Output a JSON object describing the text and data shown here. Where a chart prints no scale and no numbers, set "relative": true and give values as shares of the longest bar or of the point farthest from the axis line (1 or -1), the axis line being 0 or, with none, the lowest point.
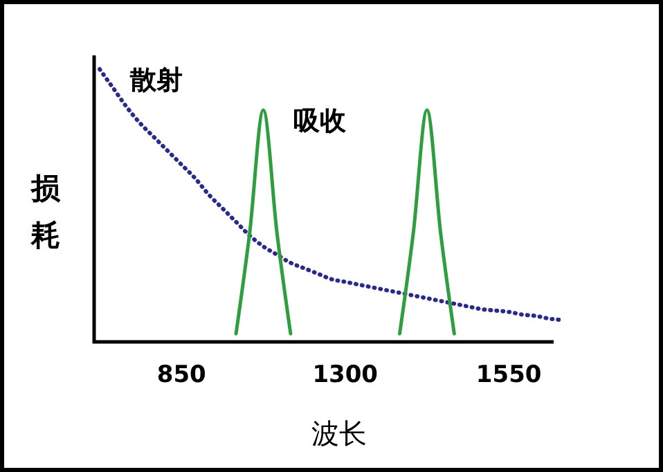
{
  "chart_data": {
    "type": "line",
    "relative": true,
    "xlabel": "波长",
    "ylabel": "损耗",
    "categories": [
      null,
      null,
      null,
      null,
      null,
      null,
      "850",
      null,
      null,
      null,
      null,
      null,
      null,
      null,
      null,
      null,
      null,
      null,
      "1300",
      null,
      null,
      null,
      null,
      null,
      null,
      null,
      null,
      null,
      null,
      null,
      "1550",
      null,
      null,
      null,
      null
    ],
    "series": [
      {
        "name": "散射",
        "color": "#2a2a8a",
        "line_style": "dotted",
        "values": [
          1,
          0.93,
          0.86,
          0.8,
          0.75,
          0.7,
          0.65,
          0.6,
          0.54,
          0.49,
          0.44,
          0.39,
          0.35,
          0.32,
          0.29,
          0.27,
          0.25,
          0.23,
          0.22,
          0.21,
          0.2,
          0.19,
          0.18,
          0.17,
          0.16,
          0.15,
          0.14,
          0.13,
          0.12,
          0.115,
          0.11,
          0.1,
          0.095,
          0.085,
          0.08
        ]
      },
      {
        "name": "吸收",
        "color": "#2e9e3e",
        "line_style": "solid",
        "values": [
          null,
          null,
          null,
          null,
          null,
          null,
          null,
          null,
          null,
          null,
          0.03,
          0.4,
          0.85,
          0.4,
          0.03,
          null,
          null,
          null,
          null,
          null,
          null,
          null,
          0.03,
          0.4,
          0.85,
          0.4,
          0.03,
          null,
          null,
          null,
          null,
          null,
          null,
          null,
          null
        ]
      }
    ],
    "tick_labels": "x"
  }
}
